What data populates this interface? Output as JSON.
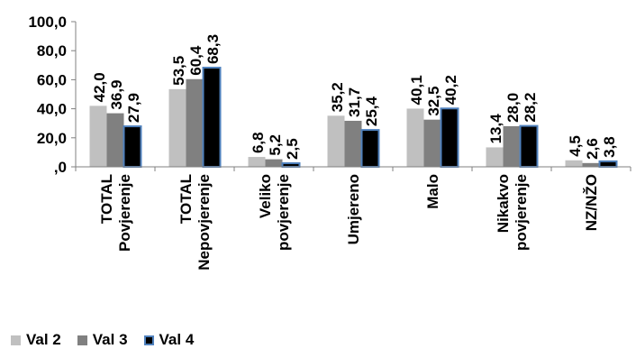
{
  "chart_data": {
    "type": "bar",
    "categories": [
      [
        "TOTAL",
        "Povjerenje"
      ],
      [
        "TOTAL",
        "Nepovjerenje"
      ],
      [
        "Veliko",
        "povjerenje"
      ],
      [
        "Umjereno"
      ],
      [
        "Malo"
      ],
      [
        "Nikakvo",
        "povjerenje"
      ],
      [
        "NZ/NŽO"
      ]
    ],
    "series": [
      {
        "name": "Val 2",
        "color": "#c0c0c0",
        "values": [
          42.0,
          53.5,
          6.8,
          35.2,
          40.1,
          13.4,
          4.5
        ],
        "labels": [
          "42,0",
          "53,5",
          "6,8",
          "35,2",
          "40,1",
          "13,4",
          "4,5"
        ]
      },
      {
        "name": "Val 3",
        "color": "#808080",
        "values": [
          36.9,
          60.4,
          5.2,
          31.7,
          32.5,
          28.0,
          2.6
        ],
        "labels": [
          "36,9",
          "60,4",
          "5,2",
          "31,7",
          "32,5",
          "28,0",
          "2,6"
        ]
      },
      {
        "name": "Val 4",
        "color": "#000000",
        "edge": "#4f81bd",
        "values": [
          27.9,
          68.3,
          2.5,
          25.4,
          40.2,
          28.2,
          3.8
        ],
        "labels": [
          "27,9",
          "68,3",
          "2,5",
          "25,4",
          "40,2",
          "28,2",
          "3,8"
        ]
      }
    ],
    "y_ticks": [
      0,
      20,
      40,
      60,
      80,
      100
    ],
    "y_tick_labels": [
      ",0",
      "20,0",
      "40,0",
      "60,0",
      "80,0",
      "100,0"
    ],
    "ylim": [
      0,
      100
    ],
    "grid": false,
    "legend_position": "bottom-left"
  }
}
